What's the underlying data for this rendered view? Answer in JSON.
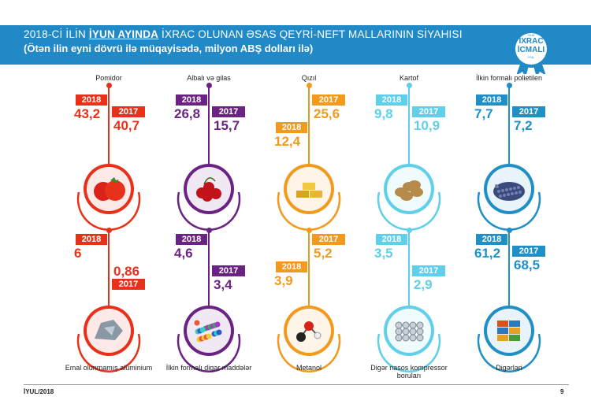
{
  "header": {
    "title_prefix": "2018-Cİ İLİN ",
    "title_emph": "İYUN AYINDA",
    "title_suffix": " İXRAC OLUNAN ƏSAS QEYRİ-NEFT MALLARININ SİYAHISI",
    "subtitle": "(Ötən ilin eyni dövrü ilə müqayisədə, milyon ABŞ dolları ilə)"
  },
  "badge": {
    "year": "2018",
    "line1": "İXRAC",
    "line2": "İCMALI",
    "month": "İYUL"
  },
  "year_a": "2018",
  "year_b": "2017",
  "products": [
    {
      "name": "Pomidor",
      "v2018": "43,2",
      "v2017": "40,7",
      "color": "#e8311a",
      "icon": "tomato-icon"
    },
    {
      "name": "Albalı və gilas",
      "v2018": "26,8",
      "v2017": "15,7",
      "color": "#6a2383",
      "icon": "cherry-icon"
    },
    {
      "name": "Qızıl",
      "v2018": "12,4",
      "v2017": "25,6",
      "color": "#f29a1d",
      "icon": "gold-bars-icon"
    },
    {
      "name": "Kartof",
      "v2018": "9,8",
      "v2017": "10,9",
      "color": "#5fcfea",
      "icon": "potato-icon"
    },
    {
      "name": "İlkin formalı polietilen",
      "v2018": "7,7",
      "v2017": "7,2",
      "color": "#1f8fc5",
      "icon": "polyethylene-granules-icon"
    },
    {
      "name": "Emal olunmamış alüminium",
      "v2018": "6",
      "v2017": "0,86",
      "color": "#e8311a",
      "icon": "aluminium-icon"
    },
    {
      "name": "İlkin formalı digər maddələr",
      "v2018": "4,6",
      "v2017": "3,4",
      "color": "#6a2383",
      "icon": "plastic-pellets-icon"
    },
    {
      "name": "Metanol",
      "v2018": "3,9",
      "v2017": "5,2",
      "color": "#f29a1d",
      "icon": "molecule-icon"
    },
    {
      "name": "Digər nasos kompressor boruları",
      "v2018": "3,5",
      "v2017": "2,9",
      "color": "#5fcfea",
      "icon": "pipes-icon"
    },
    {
      "name": "Digərləri",
      "v2018": "61,2",
      "v2017": "68,5",
      "color": "#1f8fc5",
      "icon": "containers-icon"
    }
  ],
  "footer": {
    "left": "İYUL/2018",
    "page": "9"
  }
}
